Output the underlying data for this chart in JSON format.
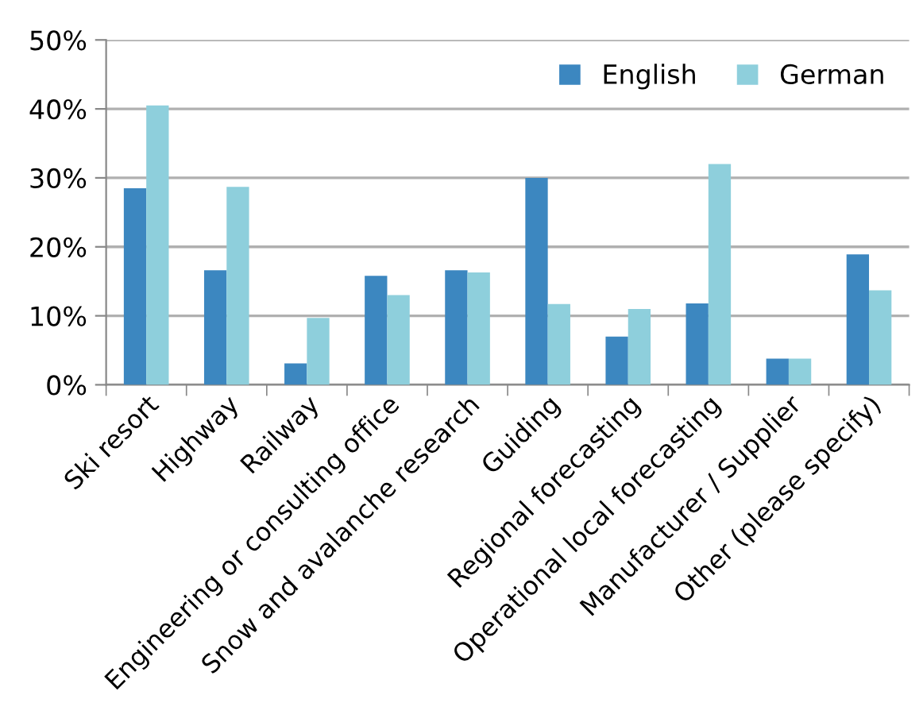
{
  "chart_data": {
    "type": "bar",
    "categories": [
      "Ski resort",
      "Highway",
      "Railway",
      "Engineering or consulting office",
      "Snow and avalanche research",
      "Guiding",
      "Regional forecasting",
      "Operational local forecasting",
      "Manufacturer / Supplier",
      "Other (please specify)"
    ],
    "series": [
      {
        "name": "English",
        "color": "#3c87c0",
        "values": [
          28.5,
          16.6,
          3.1,
          15.8,
          16.6,
          30.0,
          7.0,
          11.8,
          3.8,
          18.9
        ]
      },
      {
        "name": "German",
        "color": "#8ecfdc",
        "values": [
          40.5,
          28.7,
          9.7,
          13.0,
          16.3,
          11.7,
          11.0,
          32.0,
          3.8,
          13.7
        ]
      }
    ],
    "ylim": [
      0,
      50
    ],
    "yticks": [
      {
        "value": 0,
        "label": "0%"
      },
      {
        "value": 10,
        "label": "10%"
      },
      {
        "value": 20,
        "label": "20%"
      },
      {
        "value": 30,
        "label": "30%"
      },
      {
        "value": 40,
        "label": "40%"
      },
      {
        "value": 50,
        "label": "50%"
      }
    ],
    "grid": "y",
    "legend": "top right"
  }
}
